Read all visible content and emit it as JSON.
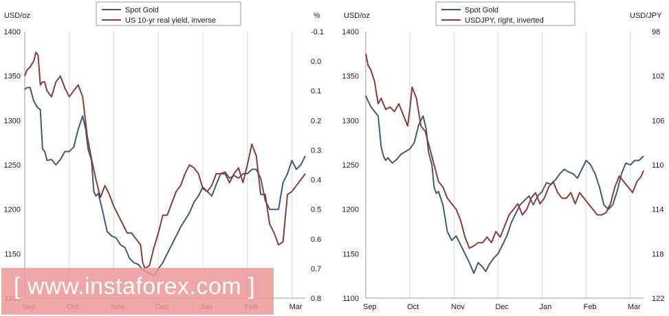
{
  "chart_data": [
    {
      "type": "line",
      "title": "",
      "ylabel_left": "USD/oz",
      "ylabel_right": "%",
      "left_axis": {
        "min": 1100,
        "max": 1400,
        "ticks": [
          1400,
          1350,
          1300,
          1250,
          1200,
          1150,
          1100
        ]
      },
      "right_axis": {
        "min": -0.1,
        "max": 0.8,
        "inverted": true,
        "ticks": [
          -0.1,
          0.0,
          0.1,
          0.2,
          0.3,
          0.4,
          0.5,
          0.6,
          0.7,
          0.8
        ],
        "tick_labels": [
          "-0.1",
          "0.0",
          "0.1",
          "0.2",
          "0.3",
          "0.4",
          "0.5",
          "0.6",
          "0.7",
          "0.8"
        ]
      },
      "x_axis": {
        "min": 0,
        "max": 6.3,
        "ticks": [
          0,
          1,
          2,
          3,
          4,
          5,
          6
        ],
        "tick_labels": [
          "Sep",
          "Oct",
          "Nov",
          "Dec",
          "Jan",
          "Feb",
          "Mar"
        ]
      },
      "legend": [
        "Spot Gold",
        "US 10-yr real yield, inverse"
      ],
      "grid": "vertical",
      "series": [
        {
          "name": "Spot Gold",
          "axis": "left",
          "color": "#3d5a7a",
          "x": [
            0,
            0.05,
            0.12,
            0.2,
            0.28,
            0.35,
            0.4,
            0.45,
            0.5,
            0.6,
            0.7,
            0.8,
            0.9,
            1.0,
            1.1,
            1.2,
            1.3,
            1.37,
            1.42,
            1.5,
            1.55,
            1.6,
            1.65,
            1.75,
            1.85,
            1.95,
            2.05,
            2.15,
            2.25,
            2.35,
            2.45,
            2.55,
            2.65,
            2.72,
            2.8,
            2.9,
            3.0,
            3.1,
            3.2,
            3.3,
            3.4,
            3.5,
            3.6,
            3.7,
            3.8,
            3.9,
            4.0,
            4.1,
            4.2,
            4.3,
            4.4,
            4.5,
            4.6,
            4.7,
            4.8,
            4.9,
            5.0,
            5.1,
            5.2,
            5.3,
            5.4,
            5.5,
            5.6,
            5.7,
            5.8,
            5.9,
            6.0,
            6.1,
            6.2,
            6.3
          ],
          "y": [
            1335,
            1337,
            1337,
            1322,
            1315,
            1312,
            1268,
            1265,
            1255,
            1256,
            1250,
            1256,
            1265,
            1265,
            1270,
            1290,
            1305,
            1290,
            1268,
            1255,
            1220,
            1215,
            1218,
            1198,
            1175,
            1170,
            1168,
            1160,
            1157,
            1145,
            1140,
            1138,
            1132,
            1130,
            1128,
            1125,
            1133,
            1140,
            1150,
            1160,
            1170,
            1180,
            1188,
            1196,
            1208,
            1215,
            1225,
            1220,
            1215,
            1228,
            1240,
            1242,
            1235,
            1238,
            1235,
            1240,
            1240,
            1245,
            1245,
            1235,
            1210,
            1200,
            1200,
            1200,
            1230,
            1240,
            1255,
            1245,
            1250,
            1260
          ]
        },
        {
          "name": "US 10-yr real yield, inverse",
          "axis": "right",
          "color": "#8b3a3a",
          "x": [
            0,
            0.05,
            0.12,
            0.2,
            0.25,
            0.3,
            0.35,
            0.4,
            0.45,
            0.5,
            0.6,
            0.7,
            0.8,
            0.9,
            1.0,
            1.1,
            1.2,
            1.3,
            1.4,
            1.5,
            1.6,
            1.7,
            1.8,
            1.9,
            2.0,
            2.1,
            2.2,
            2.3,
            2.4,
            2.5,
            2.6,
            2.65,
            2.7,
            2.8,
            2.9,
            3.0,
            3.1,
            3.2,
            3.3,
            3.4,
            3.5,
            3.6,
            3.7,
            3.8,
            3.9,
            4.0,
            4.1,
            4.2,
            4.3,
            4.4,
            4.5,
            4.6,
            4.7,
            4.8,
            4.9,
            5.0,
            5.1,
            5.2,
            5.3,
            5.4,
            5.5,
            5.6,
            5.7,
            5.8,
            5.9,
            6.0,
            6.1,
            6.2,
            6.3
          ],
          "y": [
            0.05,
            0.03,
            0.02,
            0.0,
            -0.03,
            -0.02,
            0.08,
            0.07,
            0.07,
            0.1,
            0.12,
            0.07,
            0.05,
            0.09,
            0.12,
            0.1,
            0.08,
            0.12,
            0.25,
            0.33,
            0.4,
            0.46,
            0.42,
            0.45,
            0.49,
            0.52,
            0.55,
            0.58,
            0.58,
            0.6,
            0.62,
            0.68,
            0.7,
            0.69,
            0.63,
            0.58,
            0.52,
            0.52,
            0.48,
            0.44,
            0.42,
            0.38,
            0.35,
            0.36,
            0.38,
            0.43,
            0.44,
            0.42,
            0.38,
            0.38,
            0.38,
            0.41,
            0.38,
            0.36,
            0.41,
            0.35,
            0.28,
            0.32,
            0.45,
            0.45,
            0.55,
            0.58,
            0.62,
            0.61,
            0.45,
            0.44,
            0.42,
            0.4,
            0.38
          ]
        }
      ]
    },
    {
      "type": "line",
      "title": "",
      "ylabel_left": "USD/oz",
      "ylabel_right": "USD/JPY",
      "left_axis": {
        "min": 1100,
        "max": 1400,
        "ticks": [
          1400,
          1350,
          1300,
          1250,
          1200,
          1150,
          1100
        ]
      },
      "right_axis": {
        "min": 98,
        "max": 122,
        "inverted": true,
        "ticks": [
          98,
          102,
          106,
          110,
          114,
          118,
          122
        ],
        "tick_labels": [
          "98",
          "102",
          "106",
          "110",
          "114",
          "118",
          "122"
        ]
      },
      "x_axis": {
        "min": 0,
        "max": 6.3,
        "ticks": [
          0,
          1,
          2,
          3,
          4,
          5,
          6
        ],
        "tick_labels": [
          "Sep",
          "Oct",
          "Nov",
          "Dec",
          "Jan",
          "Feb",
          "Mar"
        ]
      },
      "legend": [
        "Spot Gold",
        "USDJPY, right, inverted"
      ],
      "grid": "vertical",
      "series": [
        {
          "name": "Spot Gold",
          "axis": "left",
          "color": "#3d5a7a",
          "x": [
            0,
            0.05,
            0.12,
            0.2,
            0.28,
            0.35,
            0.4,
            0.45,
            0.5,
            0.6,
            0.7,
            0.8,
            0.9,
            1.0,
            1.1,
            1.2,
            1.3,
            1.37,
            1.42,
            1.5,
            1.55,
            1.6,
            1.65,
            1.75,
            1.85,
            1.95,
            2.05,
            2.15,
            2.25,
            2.35,
            2.45,
            2.55,
            2.65,
            2.72,
            2.8,
            2.9,
            3.0,
            3.1,
            3.2,
            3.3,
            3.4,
            3.5,
            3.6,
            3.7,
            3.8,
            3.9,
            4.0,
            4.1,
            4.2,
            4.3,
            4.4,
            4.5,
            4.6,
            4.7,
            4.8,
            4.9,
            5.0,
            5.1,
            5.2,
            5.3,
            5.4,
            5.5,
            5.6,
            5.7,
            5.8,
            5.9,
            6.0,
            6.1,
            6.2,
            6.3
          ],
          "y": [
            1328,
            1322,
            1315,
            1310,
            1305,
            1270,
            1260,
            1255,
            1258,
            1252,
            1256,
            1262,
            1265,
            1268,
            1275,
            1295,
            1305,
            1290,
            1265,
            1250,
            1225,
            1218,
            1220,
            1205,
            1175,
            1165,
            1170,
            1160,
            1150,
            1140,
            1128,
            1140,
            1135,
            1130,
            1138,
            1145,
            1150,
            1160,
            1170,
            1185,
            1195,
            1205,
            1210,
            1215,
            1205,
            1215,
            1220,
            1230,
            1228,
            1233,
            1240,
            1245,
            1242,
            1240,
            1235,
            1245,
            1255,
            1250,
            1240,
            1225,
            1205,
            1200,
            1205,
            1220,
            1240,
            1252,
            1250,
            1255,
            1255,
            1260
          ]
        },
        {
          "name": "USDJPY, right, inverted",
          "axis": "right",
          "color": "#8b3a3a",
          "x": [
            0,
            0.05,
            0.12,
            0.2,
            0.28,
            0.35,
            0.45,
            0.55,
            0.65,
            0.75,
            0.85,
            0.95,
            1.0,
            1.05,
            1.15,
            1.25,
            1.35,
            1.45,
            1.55,
            1.65,
            1.75,
            1.85,
            1.95,
            2.05,
            2.15,
            2.25,
            2.35,
            2.45,
            2.55,
            2.65,
            2.75,
            2.85,
            2.95,
            3.05,
            3.15,
            3.25,
            3.35,
            3.45,
            3.55,
            3.65,
            3.75,
            3.85,
            3.95,
            4.05,
            4.15,
            4.25,
            4.35,
            4.45,
            4.55,
            4.65,
            4.75,
            4.85,
            4.95,
            5.05,
            5.15,
            5.25,
            5.35,
            5.45,
            5.55,
            5.65,
            5.75,
            5.85,
            5.95,
            6.05,
            6.15,
            6.25,
            6.3
          ],
          "y": [
            100.0,
            101.0,
            101.5,
            102.5,
            104.5,
            104.0,
            105.0,
            104.8,
            105.2,
            104.5,
            105.5,
            106.5,
            105.0,
            103.0,
            104.0,
            106.5,
            107.0,
            108.5,
            110.0,
            111.5,
            112.0,
            113.0,
            113.5,
            114.0,
            115.0,
            116.5,
            117.5,
            117.3,
            117.0,
            117.0,
            116.5,
            117.0,
            116.0,
            116.5,
            115.5,
            114.5,
            114.0,
            113.5,
            114.5,
            114.0,
            113.0,
            112.5,
            113.5,
            113.0,
            112.0,
            111.5,
            112.5,
            113.0,
            113.0,
            112.5,
            113.5,
            112.5,
            113.0,
            113.5,
            114.0,
            114.5,
            114.5,
            114.3,
            113.5,
            112.0,
            111.0,
            111.5,
            112.0,
            112.5,
            111.5,
            111.0,
            110.5
          ]
        }
      ]
    }
  ],
  "watermark": {
    "text": "[ www.instaforex.com ]"
  }
}
